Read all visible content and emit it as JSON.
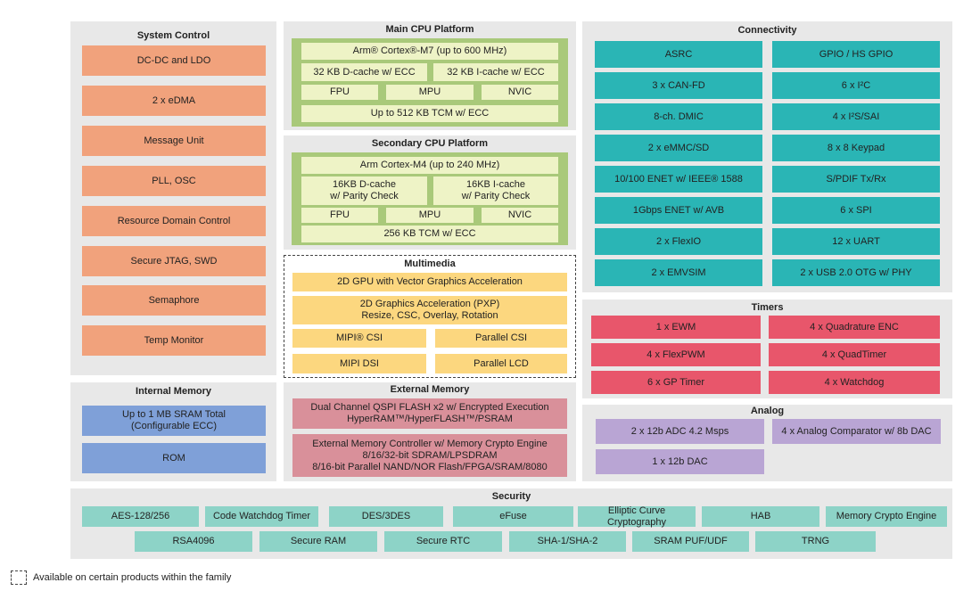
{
  "system_control": {
    "title": "System Control",
    "items": [
      "DC-DC and LDO",
      "2 x eDMA",
      "Message Unit",
      "PLL, OSC",
      "Resource Domain Control",
      "Secure JTAG, SWD",
      "Semaphore",
      "Temp Monitor"
    ]
  },
  "internal_memory": {
    "title": "Internal Memory",
    "items": [
      "Up to 1 MB SRAM Total\n(Configurable ECC)",
      "ROM"
    ]
  },
  "main_cpu": {
    "title": "Main CPU Platform",
    "items": [
      "Arm® Cortex®-M7 (up to 600 MHz)",
      "32 KB D-cache w/ ECC",
      "32 KB I-cache w/ ECC",
      "FPU",
      "MPU",
      "NVIC",
      "Up to 512 KB TCM w/ ECC"
    ]
  },
  "secondary_cpu": {
    "title": "Secondary CPU Platform",
    "items": [
      "Arm Cortex-M4 (up to 240 MHz)",
      "16KB D-cache\nw/ Parity Check",
      "16KB I-cache\nw/ Parity Check",
      "FPU",
      "MPU",
      "NVIC",
      "256 KB TCM w/ ECC"
    ]
  },
  "multimedia": {
    "title": "Multimedia",
    "items": [
      "2D GPU with Vector Graphics Acceleration",
      "2D Graphics Acceleration (PXP)\nResize, CSC, Overlay, Rotation",
      "MIPI® CSI",
      "Parallel CSI",
      "MIPI DSI",
      "Parallel LCD"
    ]
  },
  "external_memory": {
    "title": "External Memory",
    "items": [
      "Dual Channel QSPI FLASH x2 w/ Encrypted Execution\nHyperRAM™/HyperFLASH™/PSRAM",
      "External Memory Controller w/ Memory Crypto Engine\n8/16/32-bit SDRAM/LPSDRAM\n8/16-bit Parallel NAND/NOR Flash/FPGA/SRAM/8080"
    ]
  },
  "connectivity": {
    "title": "Connectivity",
    "items": [
      "ASRC",
      "GPIO / HS GPIO",
      "3 x CAN-FD",
      "6 x I²C",
      "8-ch. DMIC",
      "4 x I²S/SAI",
      "2 x eMMC/SD",
      "8 x 8 Keypad",
      "10/100 ENET w/ IEEE® 1588",
      "S/PDIF Tx/Rx",
      "1Gbps ENET w/ AVB",
      "6 x SPI",
      "2 x FlexIO",
      "12 x UART",
      "2 x EMVSIM",
      "2 x USB 2.0 OTG w/ PHY"
    ]
  },
  "timers": {
    "title": "Timers",
    "items": [
      "1 x EWM",
      "4 x Quadrature ENC",
      "4 x FlexPWM",
      "4 x QuadTimer",
      "6 x GP Timer",
      "4 x Watchdog"
    ]
  },
  "analog": {
    "title": "Analog",
    "items": [
      "2 x 12b ADC 4.2 Msps",
      "4 x Analog Comparator w/ 8b DAC",
      "1 x 12b DAC"
    ]
  },
  "security": {
    "title": "Security",
    "items": [
      "AES-128/256",
      "Code Watchdog Timer",
      "DES/3DES",
      "eFuse",
      "Elliptic Curve Cryptography",
      "HAB",
      "Memory Crypto Engine",
      "RSA4096",
      "Secure RAM",
      "Secure RTC",
      "SHA-1/SHA-2",
      "SRAM PUF/UDF",
      "TRNG"
    ]
  },
  "legend": "Available on certain products within the family"
}
